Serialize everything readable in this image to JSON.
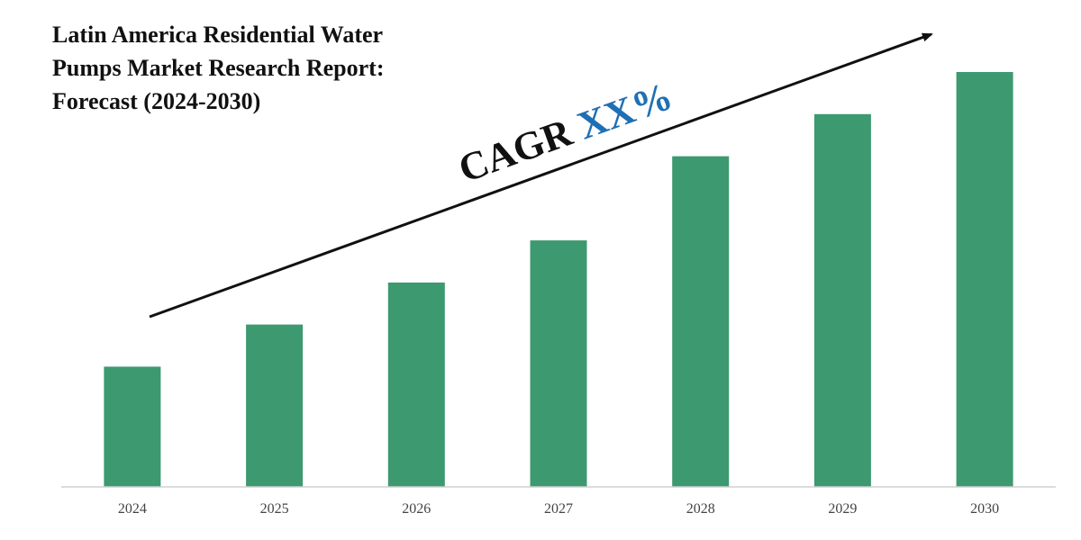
{
  "chart_data": {
    "type": "bar",
    "title_lines": [
      "Latin America Residential Water",
      "Pumps Market Research Report:",
      "Forecast (2024-2030)"
    ],
    "categories": [
      "2024",
      "2025",
      "2026",
      "2027",
      "2028",
      "2029",
      "2030"
    ],
    "values": [
      1.0,
      1.35,
      1.7,
      2.05,
      2.75,
      3.1,
      3.45
    ],
    "ylim": [
      0,
      3.6
    ],
    "grid": false,
    "bar_color": "#3d9970",
    "annotation": {
      "prefix": "CAGR ",
      "value": "XX%",
      "prefix_color": "#111111",
      "value_color": "#1f6fb5"
    }
  }
}
